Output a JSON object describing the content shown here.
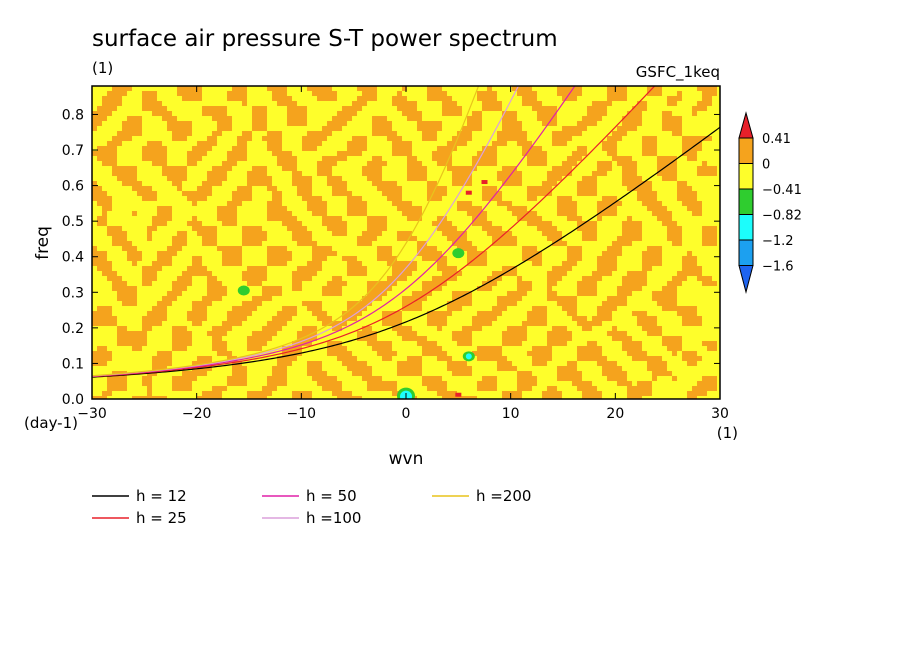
{
  "chart_data": {
    "type": "heatmap",
    "title": "surface air pressure S-T power spectrum",
    "subtitle_left": "(1)",
    "subtitle_right": "GSFC_1keq",
    "xlabel": "wvn",
    "ylabel": "freq",
    "x_unit": "(1)",
    "y_unit": "(day-1)",
    "xlim": [
      -30,
      30
    ],
    "ylim": [
      0,
      0.88
    ],
    "x_ticks": [
      -30,
      -20,
      -10,
      0,
      10,
      20,
      30
    ],
    "x_tick_labels": [
      "−30",
      "−20",
      "−10",
      "0",
      "10",
      "20",
      "30"
    ],
    "y_ticks": [
      0.0,
      0.1,
      0.2,
      0.3,
      0.4,
      0.5,
      0.6,
      0.7,
      0.8
    ],
    "y_tick_labels": [
      "0.0",
      "0.1",
      "0.2",
      "0.3",
      "0.4",
      "0.5",
      "0.6",
      "0.7",
      "0.8"
    ],
    "colorbar": {
      "levels": [
        0.41,
        0,
        -0.41,
        -0.82,
        -1.2,
        -1.6
      ],
      "labels": [
        "0.41",
        "0",
        "−0.41",
        "−0.82",
        "−1.2",
        "−1.6"
      ],
      "colors": [
        "#e8202a",
        "#f5a31d",
        "#fefe2b",
        "#2fcd2f",
        "#1cfdfc",
        "#1ca0f0",
        "#1e64f0"
      ]
    },
    "background_field": {
      "dominant_range": "-0.41 to 0.41",
      "colors": {
        "low": "#fefe2b",
        "high": "#f5a31d"
      },
      "isolated_features": [
        {
          "x": 0,
          "y": 0.015,
          "level": "-1.2"
        },
        {
          "x": 6,
          "y": 0.12,
          "level": "-0.82"
        },
        {
          "x": 5,
          "y": 0.41,
          "level": "-0.82"
        },
        {
          "x": -15.5,
          "y": 0.305,
          "level": "-0.82"
        },
        {
          "x": 5,
          "y": 0.012,
          "level": "0.41"
        },
        {
          "x": 6,
          "y": 0.58,
          "level": "0.41"
        },
        {
          "x": 7.5,
          "y": 0.61,
          "level": "0.41"
        }
      ]
    },
    "series": [
      {
        "name": "h = 12",
        "h": 12,
        "color": "#000000"
      },
      {
        "name": "h = 25",
        "h": 25,
        "color": "#e8202a"
      },
      {
        "name": "h = 50",
        "h": 50,
        "color": "#e020a8"
      },
      {
        "name": "h =100",
        "h": 100,
        "color": "#dca0dc"
      },
      {
        "name": "h =200",
        "h": 200,
        "color": "#e8c41c"
      }
    ]
  }
}
